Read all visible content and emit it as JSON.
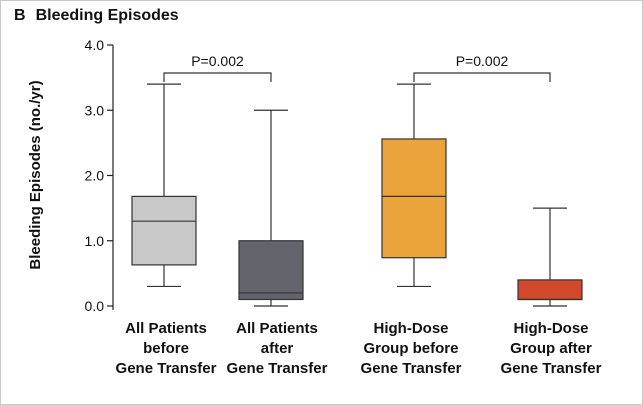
{
  "panel": {
    "letter": "B",
    "title": "Bleeding Episodes"
  },
  "chart_data": {
    "type": "box",
    "ylabel": "Bleeding Episodes (no./yr)",
    "ylim": [
      0,
      4.0
    ],
    "yticks": [
      "0.0",
      "1.0",
      "2.0",
      "3.0",
      "4.0"
    ],
    "grid": false,
    "categories": [
      [
        "All Patients",
        "before",
        "Gene Transfer"
      ],
      [
        "All Patients",
        "after",
        "Gene Transfer"
      ],
      [
        "High-Dose",
        "Group before",
        "Gene Transfer"
      ],
      [
        "High-Dose",
        "Group after",
        "Gene Transfer"
      ]
    ],
    "boxes": [
      {
        "min": 0.3,
        "q1": 0.63,
        "median": 1.3,
        "q3": 1.68,
        "max": 3.4,
        "color": "#c8c8c8"
      },
      {
        "min": 0.0,
        "q1": 0.1,
        "median": 0.2,
        "q3": 1.0,
        "max": 3.0,
        "color": "#63646b"
      },
      {
        "min": 0.3,
        "q1": 0.74,
        "median": 1.68,
        "q3": 2.56,
        "max": 3.4,
        "color": "#eaa43b"
      },
      {
        "min": 0.0,
        "q1": 0.1,
        "median": 0.1,
        "q3": 0.4,
        "max": 1.5,
        "color": "#d2482b"
      }
    ],
    "comparisons": [
      {
        "between": [
          0,
          1
        ],
        "label": "P=0.002"
      },
      {
        "between": [
          2,
          3
        ],
        "label": "P=0.002"
      }
    ]
  }
}
